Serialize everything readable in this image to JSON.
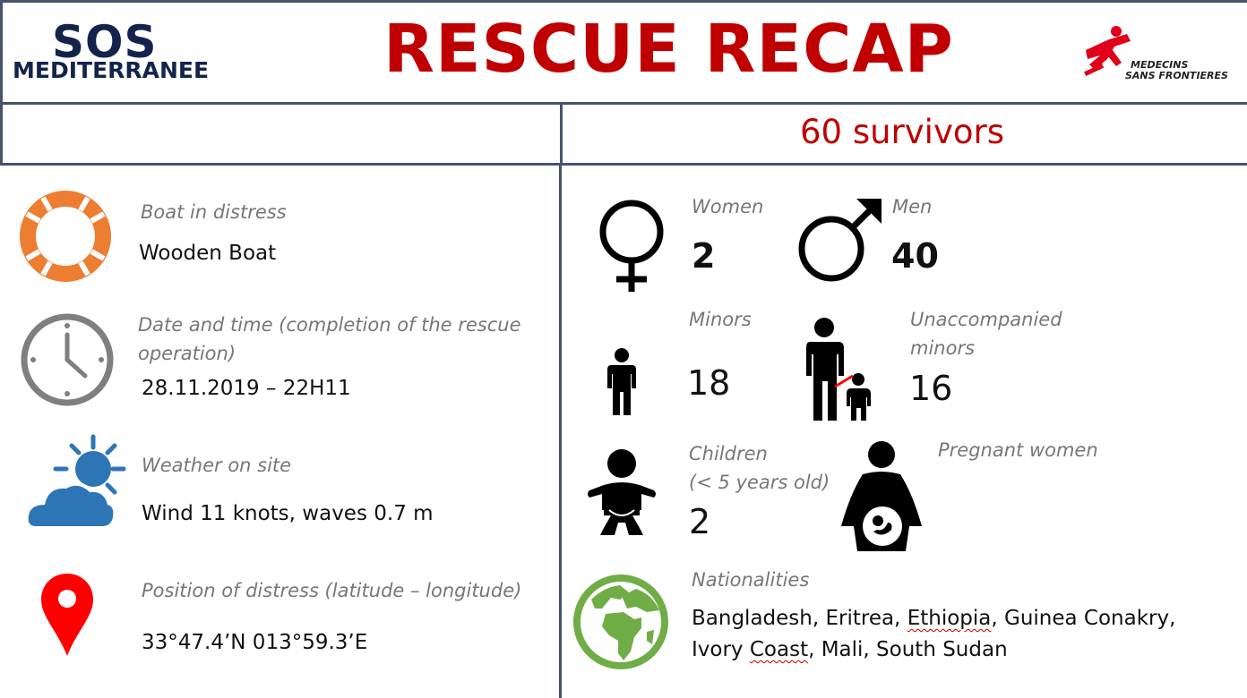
{
  "header": {
    "title": "RESCUE RECAP",
    "left_logo": {
      "line1": "SOS",
      "line2": "MEDITERRANEE"
    },
    "right_logo": {
      "line1": "MEDECINS",
      "line2": "SANS FRONTIERES"
    }
  },
  "summary": {
    "survivors": "60 survivors"
  },
  "left_panel": {
    "boat": {
      "label": "Boat in distress",
      "value": "Wooden Boat",
      "icon": "lifebuoy-icon",
      "color": "#ed7d31"
    },
    "datetime": {
      "label_line1": "Date and time (completion of the rescue",
      "label_line2": "operation)",
      "value": "28.11.2019 – 22H11",
      "icon": "clock-icon"
    },
    "weather": {
      "label": "Weather on site",
      "value": "Wind 11 knots, waves 0.7 m",
      "icon": "sun-cloud-icon",
      "color": "#2e75b6"
    },
    "position": {
      "label": "Position of distress (latitude – longitude)",
      "value": "33°47.4’N  013°59.3’E",
      "icon": "map-pin-icon",
      "color": "#ff0000"
    }
  },
  "right_panel": {
    "women": {
      "label": "Women",
      "value": "2"
    },
    "men": {
      "label": "Men",
      "value": "40"
    },
    "minors": {
      "label": "Minors",
      "value": "18"
    },
    "unaccompanied": {
      "label_line1": "Unaccompanied",
      "label_line2": "minors",
      "value": "16"
    },
    "children": {
      "label_line1": "Children",
      "label_line2": "(< 5 years old)",
      "value": "2"
    },
    "pregnant": {
      "label": "Pregnant women"
    },
    "nationalities": {
      "label": "Nationalities",
      "line1_parts": [
        "Bangladesh, Eritrea, ",
        "Ethiopia",
        ", Guinea Conakry,"
      ],
      "line2_parts": [
        "Ivory ",
        "Coast",
        ", Mali, South Sudan"
      ],
      "icon": "globe-icon",
      "color": "#70ad47"
    }
  }
}
